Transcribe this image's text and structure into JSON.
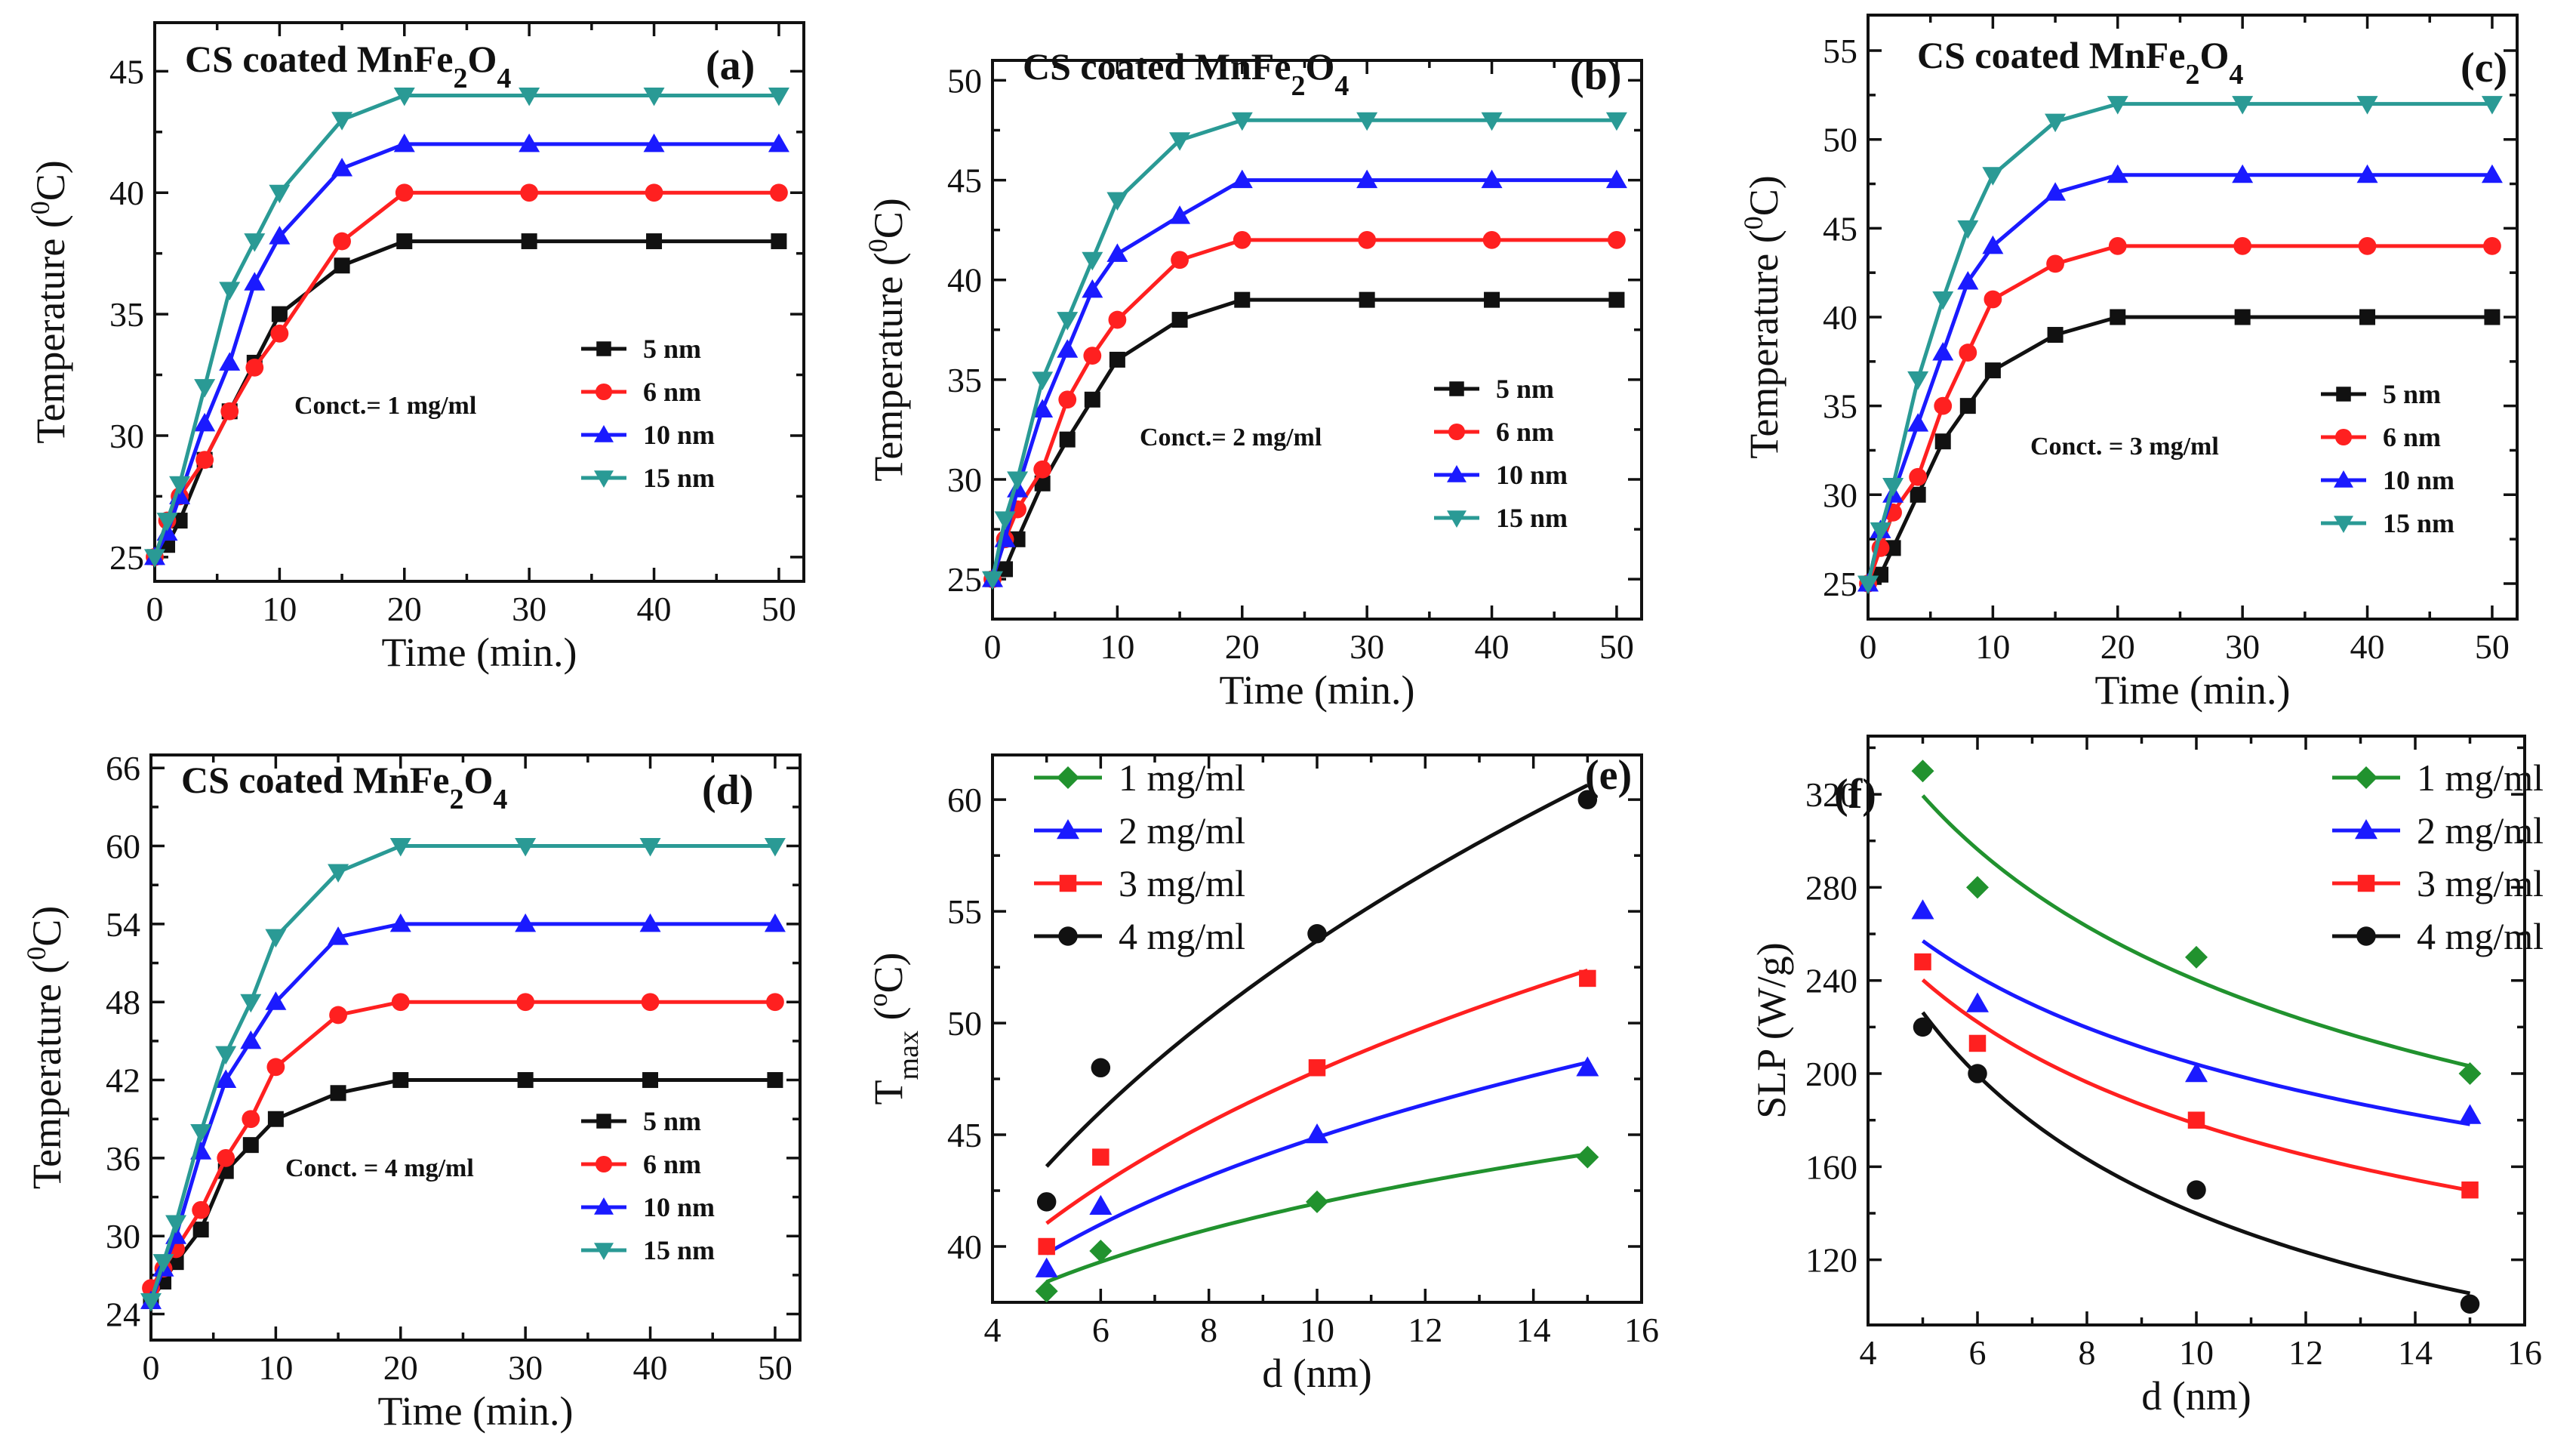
{
  "chart_data": [
    {
      "id": "a",
      "type": "line",
      "panel_label": "(a)",
      "title": "CS coated MnFe",
      "title_sub": "2",
      "title_tail": "O",
      "title_sub2": "4",
      "xlabel": "Time (min.)",
      "ylabel": "Temperature (",
      "ylabel_sup": "0",
      "ylabel_tail": "C)",
      "xlim": [
        0,
        52
      ],
      "ylim": [
        24,
        47
      ],
      "xticks": [
        0,
        10,
        20,
        30,
        40,
        50
      ],
      "yticks": [
        25,
        30,
        35,
        40,
        45
      ],
      "annotation": "Conct.= 1 mg/ml",
      "series": [
        {
          "name": "5 nm",
          "color": "#111111",
          "marker": "square",
          "x": [
            0,
            1,
            2,
            4,
            6,
            8,
            10,
            15,
            20,
            30,
            40,
            50
          ],
          "y": [
            25,
            25.5,
            26.5,
            29,
            31,
            33,
            35,
            37,
            38,
            38,
            38,
            38
          ]
        },
        {
          "name": "6 nm",
          "color": "#ff2020",
          "marker": "circle",
          "x": [
            0,
            1,
            2,
            4,
            6,
            8,
            10,
            15,
            20,
            30,
            40,
            50
          ],
          "y": [
            25,
            26.5,
            27.5,
            29,
            31,
            32.8,
            34.2,
            38,
            40,
            40,
            40,
            40
          ]
        },
        {
          "name": "10 nm",
          "color": "#1a1aff",
          "marker": "triangle-up",
          "x": [
            0,
            1,
            2,
            4,
            6,
            8,
            10,
            15,
            20,
            30,
            40,
            50
          ],
          "y": [
            25,
            26,
            27.5,
            30.5,
            33,
            36.3,
            38.2,
            41,
            42,
            42,
            42,
            42
          ]
        },
        {
          "name": "15 nm",
          "color": "#2a9a95",
          "marker": "triangle-down",
          "x": [
            0,
            1,
            2,
            4,
            6,
            8,
            10,
            15,
            20,
            30,
            40,
            50
          ],
          "y": [
            25,
            26.5,
            28,
            32,
            36,
            38,
            40,
            43,
            44,
            44,
            44,
            44
          ]
        }
      ]
    },
    {
      "id": "b",
      "type": "line",
      "panel_label": "(b)",
      "title": "CS coated MnFe",
      "title_sub": "2",
      "title_tail": "O",
      "title_sub2": "4",
      "xlabel": "Time (min.)",
      "ylabel": "Temperature (",
      "ylabel_sup": "0",
      "ylabel_tail": "C)",
      "xlim": [
        0,
        52
      ],
      "ylim": [
        23,
        51
      ],
      "xticks": [
        0,
        10,
        20,
        30,
        40,
        50
      ],
      "yticks": [
        25,
        30,
        35,
        40,
        45,
        50
      ],
      "annotation": "Conct.= 2 mg/ml",
      "series": [
        {
          "name": "5 nm",
          "color": "#111111",
          "marker": "square",
          "x": [
            0,
            1,
            2,
            4,
            6,
            8,
            10,
            15,
            20,
            30,
            40,
            50
          ],
          "y": [
            25,
            25.5,
            27,
            29.8,
            32,
            34,
            36,
            38,
            39,
            39,
            39,
            39
          ]
        },
        {
          "name": "6 nm",
          "color": "#ff2020",
          "marker": "circle",
          "x": [
            0,
            1,
            2,
            4,
            6,
            8,
            10,
            15,
            20,
            30,
            40,
            50
          ],
          "y": [
            25,
            27,
            28.5,
            30.5,
            34,
            36.2,
            38,
            41,
            42,
            42,
            42,
            42
          ]
        },
        {
          "name": "10 nm",
          "color": "#1a1aff",
          "marker": "triangle-up",
          "x": [
            0,
            1,
            2,
            4,
            6,
            8,
            10,
            15,
            20,
            30,
            40,
            50
          ],
          "y": [
            25,
            27,
            29.5,
            33.5,
            36.5,
            39.5,
            41.3,
            43.2,
            45,
            45,
            45,
            45
          ]
        },
        {
          "name": "15 nm",
          "color": "#2a9a95",
          "marker": "triangle-down",
          "x": [
            0,
            1,
            2,
            4,
            6,
            8,
            10,
            15,
            20,
            30,
            40,
            50
          ],
          "y": [
            25,
            28,
            30,
            35,
            38,
            41,
            44,
            47,
            48,
            48,
            48,
            48
          ]
        }
      ]
    },
    {
      "id": "c",
      "type": "line",
      "panel_label": "(c)",
      "title": "CS coated MnFe",
      "title_sub": "2",
      "title_tail": "O",
      "title_sub2": "4",
      "xlabel": "Time (min.)",
      "ylabel": "Temperature (",
      "ylabel_sup": "0",
      "ylabel_tail": "C)",
      "xlim": [
        0,
        52
      ],
      "ylim": [
        23,
        57
      ],
      "xticks": [
        0,
        10,
        20,
        30,
        40,
        50
      ],
      "yticks": [
        25,
        30,
        35,
        40,
        45,
        50,
        55
      ],
      "annotation": "Conct. = 3 mg/ml",
      "series": [
        {
          "name": "5 nm",
          "color": "#111111",
          "marker": "square",
          "x": [
            0,
            1,
            2,
            4,
            6,
            8,
            10,
            15,
            20,
            30,
            40,
            50
          ],
          "y": [
            25,
            25.5,
            27,
            30,
            33,
            35,
            37,
            39,
            40,
            40,
            40,
            40
          ]
        },
        {
          "name": "6 nm",
          "color": "#ff2020",
          "marker": "circle",
          "x": [
            0,
            1,
            2,
            4,
            6,
            8,
            10,
            15,
            20,
            30,
            40,
            50
          ],
          "y": [
            25,
            27,
            29,
            31,
            35,
            38,
            41,
            43,
            44,
            44,
            44,
            44
          ]
        },
        {
          "name": "10 nm",
          "color": "#1a1aff",
          "marker": "triangle-up",
          "x": [
            0,
            1,
            2,
            4,
            6,
            8,
            10,
            15,
            20,
            30,
            40,
            50
          ],
          "y": [
            25,
            28,
            30,
            34,
            38,
            42,
            44,
            47,
            48,
            48,
            48,
            48
          ]
        },
        {
          "name": "15 nm",
          "color": "#2a9a95",
          "marker": "triangle-down",
          "x": [
            0,
            1,
            2,
            4,
            6,
            8,
            10,
            15,
            20,
            30,
            40,
            50
          ],
          "y": [
            25,
            28,
            30.5,
            36.5,
            41,
            45,
            48,
            51,
            52,
            52,
            52,
            52
          ]
        }
      ]
    },
    {
      "id": "d",
      "type": "line",
      "panel_label": "(d)",
      "title": "CS coated MnFe",
      "title_sub": "2",
      "title_tail": "O",
      "title_sub2": "4",
      "xlabel": "Time (min.)",
      "ylabel": "Temperature (",
      "ylabel_sup": "0",
      "ylabel_tail": "C)",
      "xlim": [
        0,
        52
      ],
      "ylim": [
        22,
        67
      ],
      "xticks": [
        0,
        10,
        20,
        30,
        40,
        50
      ],
      "yticks": [
        24,
        30,
        36,
        42,
        48,
        54,
        60,
        66
      ],
      "annotation": "Conct. = 4 mg/ml",
      "series": [
        {
          "name": "5 nm",
          "color": "#111111",
          "marker": "square",
          "x": [
            0,
            1,
            2,
            4,
            6,
            8,
            10,
            15,
            20,
            30,
            40,
            50
          ],
          "y": [
            25,
            26.5,
            28,
            30.5,
            35,
            37,
            39,
            41,
            42,
            42,
            42,
            42
          ]
        },
        {
          "name": "6 nm",
          "color": "#ff2020",
          "marker": "circle",
          "x": [
            0,
            1,
            2,
            4,
            6,
            8,
            10,
            15,
            20,
            30,
            40,
            50
          ],
          "y": [
            26,
            27.5,
            29,
            32,
            36,
            39,
            43,
            47,
            48,
            48,
            48,
            48
          ]
        },
        {
          "name": "10 nm",
          "color": "#1a1aff",
          "marker": "triangle-up",
          "x": [
            0,
            1,
            2,
            4,
            6,
            8,
            10,
            15,
            20,
            30,
            40,
            50
          ],
          "y": [
            25,
            27.5,
            30,
            36.5,
            42,
            45,
            48,
            53,
            54,
            54,
            54,
            54
          ]
        },
        {
          "name": "15 nm",
          "color": "#2a9a95",
          "marker": "triangle-down",
          "x": [
            0,
            1,
            2,
            4,
            6,
            8,
            10,
            15,
            20,
            30,
            40,
            50
          ],
          "y": [
            25,
            28,
            31,
            38,
            44,
            48,
            53,
            58,
            60,
            60,
            60,
            60
          ]
        }
      ]
    },
    {
      "id": "e",
      "type": "scatter",
      "panel_label": "(e)",
      "xlabel": "d (nm)",
      "ylabel": "T",
      "ylabel_sub": "max",
      "ylabel_tail": " (",
      "ylabel_sup": "o",
      "ylabel_tail2": "C)",
      "xlim": [
        4,
        16
      ],
      "ylim": [
        37.5,
        62
      ],
      "xticks": [
        4,
        6,
        8,
        10,
        12,
        14,
        16
      ],
      "yticks": [
        40,
        45,
        50,
        55,
        60
      ],
      "series": [
        {
          "name": "1 mg/ml",
          "color": "#21922e",
          "marker": "diamond",
          "x": [
            5,
            6,
            10,
            15
          ],
          "y": [
            38,
            39.8,
            42,
            44
          ]
        },
        {
          "name": "2 mg/ml",
          "color": "#1a1aff",
          "marker": "triangle-up",
          "x": [
            5,
            6,
            10,
            15
          ],
          "y": [
            39,
            41.8,
            45,
            48
          ]
        },
        {
          "name": "3 mg/ml",
          "color": "#ff2020",
          "marker": "square",
          "x": [
            5,
            6,
            10,
            15
          ],
          "y": [
            40,
            44,
            48,
            52
          ]
        },
        {
          "name": "4 mg/ml",
          "color": "#111111",
          "marker": "circle",
          "x": [
            5,
            6,
            10,
            15
          ],
          "y": [
            42,
            48,
            54,
            60
          ]
        }
      ]
    },
    {
      "id": "f",
      "type": "scatter",
      "panel_label": "(f)",
      "xlabel": "d (nm)",
      "ylabel": "SLP (W/g)",
      "xlim": [
        4,
        16
      ],
      "ylim": [
        92,
        345
      ],
      "xticks": [
        4,
        6,
        8,
        10,
        12,
        14,
        16
      ],
      "yticks": [
        120,
        160,
        200,
        240,
        280,
        320
      ],
      "series": [
        {
          "name": "1 mg/ml",
          "color": "#21922e",
          "marker": "diamond",
          "x": [
            5,
            6,
            10,
            15
          ],
          "y": [
            330,
            280,
            250,
            200
          ]
        },
        {
          "name": "2 mg/ml",
          "color": "#1a1aff",
          "marker": "triangle-up",
          "x": [
            5,
            6,
            10,
            15
          ],
          "y": [
            270,
            230,
            200,
            182
          ]
        },
        {
          "name": "3 mg/ml",
          "color": "#ff2020",
          "marker": "square",
          "x": [
            5,
            6,
            10,
            15
          ],
          "y": [
            248,
            213,
            180,
            150
          ]
        },
        {
          "name": "4 mg/ml",
          "color": "#111111",
          "marker": "circle",
          "x": [
            5,
            6,
            10,
            15
          ],
          "y": [
            220,
            200,
            150,
            101
          ]
        }
      ]
    }
  ]
}
